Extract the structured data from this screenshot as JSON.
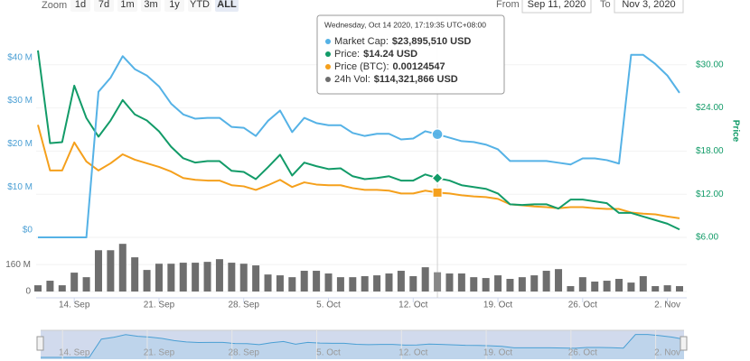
{
  "chart_data": {
    "type": "stock",
    "range_selector": {
      "zoom_label": "Zoom",
      "buttons": [
        "1d",
        "7d",
        "1m",
        "3m",
        "1y",
        "YTD",
        "ALL"
      ],
      "selected_button": "ALL",
      "from_label": "From",
      "from": "Sep 11, 2020",
      "to_label": "To",
      "to": "Nov 3, 2020"
    },
    "categories": [
      null,
      null,
      null,
      "14. Sep",
      null,
      null,
      null,
      null,
      null,
      null,
      "21. Sep",
      null,
      null,
      null,
      null,
      null,
      null,
      "28. Sep",
      null,
      null,
      null,
      null,
      null,
      null,
      "5. Oct",
      null,
      null,
      null,
      null,
      null,
      null,
      "12. Oct",
      null,
      null,
      null,
      null,
      null,
      null,
      "19. Oct",
      null,
      null,
      null,
      null,
      null,
      null,
      "26. Oct",
      null,
      null,
      null,
      null,
      null,
      null,
      "2. Nov",
      null
    ],
    "ylim": [
      0,
      50000000
    ],
    "yticks": [
      {
        "value": 0,
        "label": "$0"
      },
      {
        "value": 10000000,
        "label": "$10 M"
      },
      {
        "value": 20000000,
        "label": "$20 M"
      },
      {
        "value": 30000000,
        "label": "$30 M"
      },
      {
        "value": 40000000,
        "label": "$40 M"
      }
    ],
    "y2lim": [
      6,
      36
    ],
    "y2ticks": [
      {
        "value": 6,
        "label": "$6.00"
      },
      {
        "value": 12,
        "label": "$12.00"
      },
      {
        "value": 18,
        "label": "$18.00"
      },
      {
        "value": 24,
        "label": "$24.00"
      },
      {
        "value": 30,
        "label": "$30.00"
      }
    ],
    "y2_label": "Price",
    "y3lim": [
      0,
      0.006
    ],
    "volume_lim": [
      0,
      300000000
    ],
    "volume_ticks": [
      0,
      {
        "value": 160000000,
        "label": "160 M"
      }
    ],
    "series": [
      {
        "name": "Market Cap",
        "color": "#55b2e6",
        "axis": "y",
        "marker": "circle",
        "values": [
          0,
          0,
          0,
          0,
          0,
          33750000,
          37000000,
          42000000,
          39000000,
          37500000,
          35000000,
          31000000,
          28500000,
          27500000,
          27700000,
          27700000,
          25600000,
          25400000,
          23500000,
          27000000,
          29400000,
          24400000,
          27700000,
          26500000,
          26000000,
          26000000,
          24200000,
          23500000,
          24000000,
          24000000,
          22700000,
          22900000,
          24600000,
          23895510,
          23100000,
          22300000,
          22100000,
          21500000,
          20400000,
          17700000,
          17700000,
          17700000,
          17700000,
          17300000,
          16900000,
          18300000,
          18300000,
          17900000,
          17100000,
          42300000,
          42300000,
          40200000,
          37500000,
          33500000
        ]
      },
      {
        "name": "Price",
        "color": "#129b68",
        "axis": "y2",
        "marker": "diamond",
        "values": [
          32,
          19.1,
          19.25,
          27.1,
          22.6,
          20,
          22.25,
          25.1,
          23.1,
          22.25,
          20.75,
          18.6,
          17,
          16.4,
          16.6,
          16.6,
          15.25,
          15.1,
          14.1,
          15.75,
          17.5,
          14.6,
          16.4,
          15.9,
          15.5,
          15.6,
          14.5,
          14.1,
          14.25,
          14.5,
          13.9,
          13.9,
          14.75,
          14.24,
          13.9,
          13.25,
          13,
          12.75,
          12.1,
          10.6,
          10.5,
          10.6,
          10.6,
          10,
          11.25,
          11.25,
          11,
          10.75,
          9.4,
          9.4,
          8.9,
          8.4,
          7.9,
          7.1
        ]
      },
      {
        "name": "Price (BTC)",
        "color": "#f5a01c",
        "axis": "y3",
        "marker": "square",
        "values": [
          0.00313,
          0.00186,
          0.00186,
          0.00264,
          0.00211,
          0.00186,
          0.00206,
          0.00231,
          0.00216,
          0.00206,
          0.00196,
          0.00183,
          0.00165,
          0.0016,
          0.00158,
          0.00158,
          0.00145,
          0.00142,
          0.00132,
          0.00145,
          0.0016,
          0.0014,
          0.00153,
          0.00147,
          0.00145,
          0.00145,
          0.00137,
          0.00132,
          0.00132,
          0.0013,
          0.00122,
          0.00122,
          0.0013,
          0.00124547,
          0.00122,
          0.00117,
          0.00114,
          0.00112,
          0.00107,
          0.00092,
          0.00089,
          0.00086,
          0.00084,
          0.00081,
          0.00084,
          0.00084,
          0.00081,
          0.00079,
          0.00079,
          0.00069,
          0.00066,
          0.00064,
          0.00058,
          0.00053
        ]
      },
      {
        "name": "24h Vol",
        "color": "#6e6e6e",
        "axis": "volume",
        "marker": "bar",
        "values": [
          37000000,
          64000000,
          37000000,
          112000000,
          85000000,
          245000000,
          245000000,
          283000000,
          203000000,
          128000000,
          165000000,
          165000000,
          171000000,
          171000000,
          176000000,
          192000000,
          171000000,
          165000000,
          155000000,
          101000000,
          96000000,
          85000000,
          123000000,
          123000000,
          107000000,
          85000000,
          85000000,
          91000000,
          96000000,
          107000000,
          123000000,
          91000000,
          144000000,
          114321866,
          107000000,
          107000000,
          85000000,
          80000000,
          96000000,
          75000000,
          85000000,
          96000000,
          123000000,
          133000000,
          32000000,
          85000000,
          59000000,
          64000000,
          75000000,
          53000000,
          91000000,
          32000000,
          37000000,
          32000000
        ]
      }
    ],
    "tooltip": {
      "header": "Wednesday, Oct 14 2020, 17:19:35 UTC+08:00",
      "rows": [
        {
          "label": "Market Cap:",
          "value": "$23,895,510 USD"
        },
        {
          "label": "Price:",
          "value": "$14.24 USD"
        },
        {
          "label": "Price (BTC):",
          "value": "0.00124547"
        },
        {
          "label": "24h Vol:",
          "value": "$114,321,866 USD"
        }
      ]
    }
  }
}
